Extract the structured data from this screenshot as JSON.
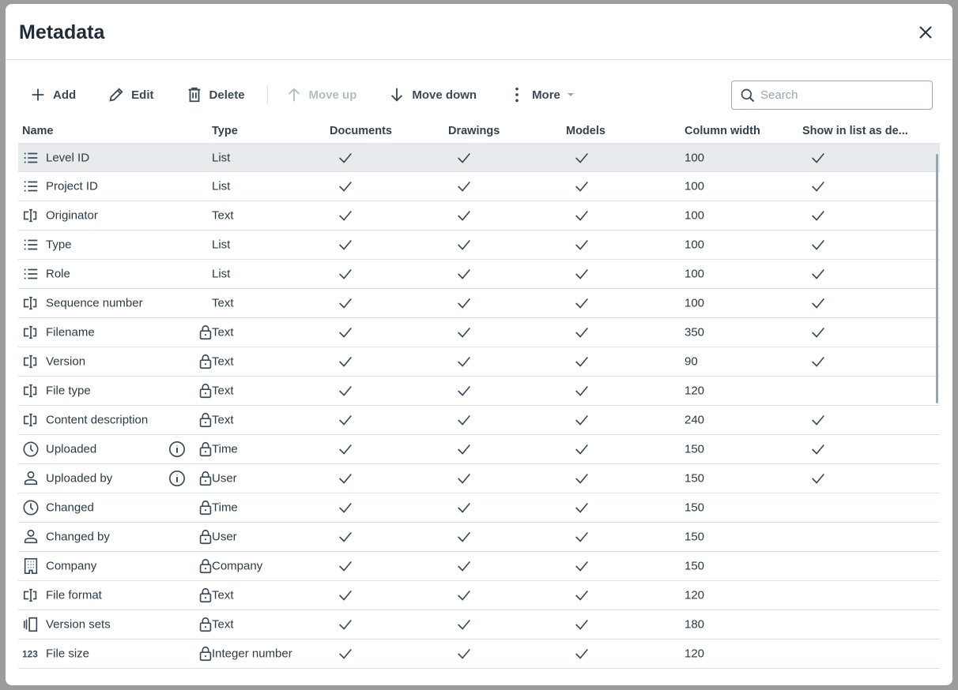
{
  "title": "Metadata",
  "toolbar": {
    "add": "Add",
    "edit": "Edit",
    "delete": "Delete",
    "move_up": "Move up",
    "move_down": "Move down",
    "more": "More"
  },
  "search": {
    "placeholder": "Search",
    "value": ""
  },
  "columns": [
    "Name",
    "Type",
    "Documents",
    "Drawings",
    "Models",
    "Column width",
    "Show in list as de..."
  ],
  "rows": [
    {
      "icon": "list",
      "name": "Level ID",
      "type": "List",
      "locked": false,
      "info": false,
      "documents": true,
      "drawings": true,
      "models": true,
      "width": "100",
      "show": true,
      "selected": true
    },
    {
      "icon": "list",
      "name": "Project ID",
      "type": "List",
      "locked": false,
      "info": false,
      "documents": true,
      "drawings": true,
      "models": true,
      "width": "100",
      "show": true
    },
    {
      "icon": "text",
      "name": "Originator",
      "type": "Text",
      "locked": false,
      "info": false,
      "documents": true,
      "drawings": true,
      "models": true,
      "width": "100",
      "show": true
    },
    {
      "icon": "list",
      "name": "Type",
      "type": "List",
      "locked": false,
      "info": false,
      "documents": true,
      "drawings": true,
      "models": true,
      "width": "100",
      "show": true
    },
    {
      "icon": "list",
      "name": "Role",
      "type": "List",
      "locked": false,
      "info": false,
      "documents": true,
      "drawings": true,
      "models": true,
      "width": "100",
      "show": true
    },
    {
      "icon": "text",
      "name": "Sequence number",
      "type": "Text",
      "locked": false,
      "info": false,
      "documents": true,
      "drawings": true,
      "models": true,
      "width": "100",
      "show": true
    },
    {
      "icon": "text",
      "name": "Filename",
      "type": "Text",
      "locked": true,
      "info": false,
      "documents": true,
      "drawings": true,
      "models": true,
      "width": "350",
      "show": true
    },
    {
      "icon": "text",
      "name": "Version",
      "type": "Text",
      "locked": true,
      "info": false,
      "documents": true,
      "drawings": true,
      "models": true,
      "width": "90",
      "show": true
    },
    {
      "icon": "text",
      "name": "File type",
      "type": "Text",
      "locked": true,
      "info": false,
      "documents": true,
      "drawings": true,
      "models": true,
      "width": "120",
      "show": false
    },
    {
      "icon": "text",
      "name": "Content description",
      "type": "Text",
      "locked": true,
      "info": false,
      "documents": true,
      "drawings": true,
      "models": true,
      "width": "240",
      "show": true
    },
    {
      "icon": "clock",
      "name": "Uploaded",
      "type": "Time",
      "locked": true,
      "info": true,
      "documents": true,
      "drawings": true,
      "models": true,
      "width": "150",
      "show": true
    },
    {
      "icon": "user",
      "name": "Uploaded by",
      "type": "User",
      "locked": true,
      "info": true,
      "documents": true,
      "drawings": true,
      "models": true,
      "width": "150",
      "show": true
    },
    {
      "icon": "clock",
      "name": "Changed",
      "type": "Time",
      "locked": true,
      "info": false,
      "documents": true,
      "drawings": true,
      "models": true,
      "width": "150",
      "show": false
    },
    {
      "icon": "user",
      "name": "Changed by",
      "type": "User",
      "locked": true,
      "info": false,
      "documents": true,
      "drawings": true,
      "models": true,
      "width": "150",
      "show": false
    },
    {
      "icon": "building",
      "name": "Company",
      "type": "Company",
      "locked": true,
      "info": false,
      "documents": true,
      "drawings": true,
      "models": true,
      "width": "150",
      "show": false
    },
    {
      "icon": "text",
      "name": "File format",
      "type": "Text",
      "locked": true,
      "info": false,
      "documents": true,
      "drawings": true,
      "models": true,
      "width": "120",
      "show": false
    },
    {
      "icon": "versions",
      "name": "Version sets",
      "type": "Text",
      "locked": true,
      "info": false,
      "documents": true,
      "drawings": true,
      "models": true,
      "width": "180",
      "show": false
    },
    {
      "icon": "numbers",
      "name": "File size",
      "type": "Integer number",
      "locked": true,
      "info": false,
      "documents": true,
      "drawings": true,
      "models": true,
      "width": "120",
      "show": false
    }
  ]
}
